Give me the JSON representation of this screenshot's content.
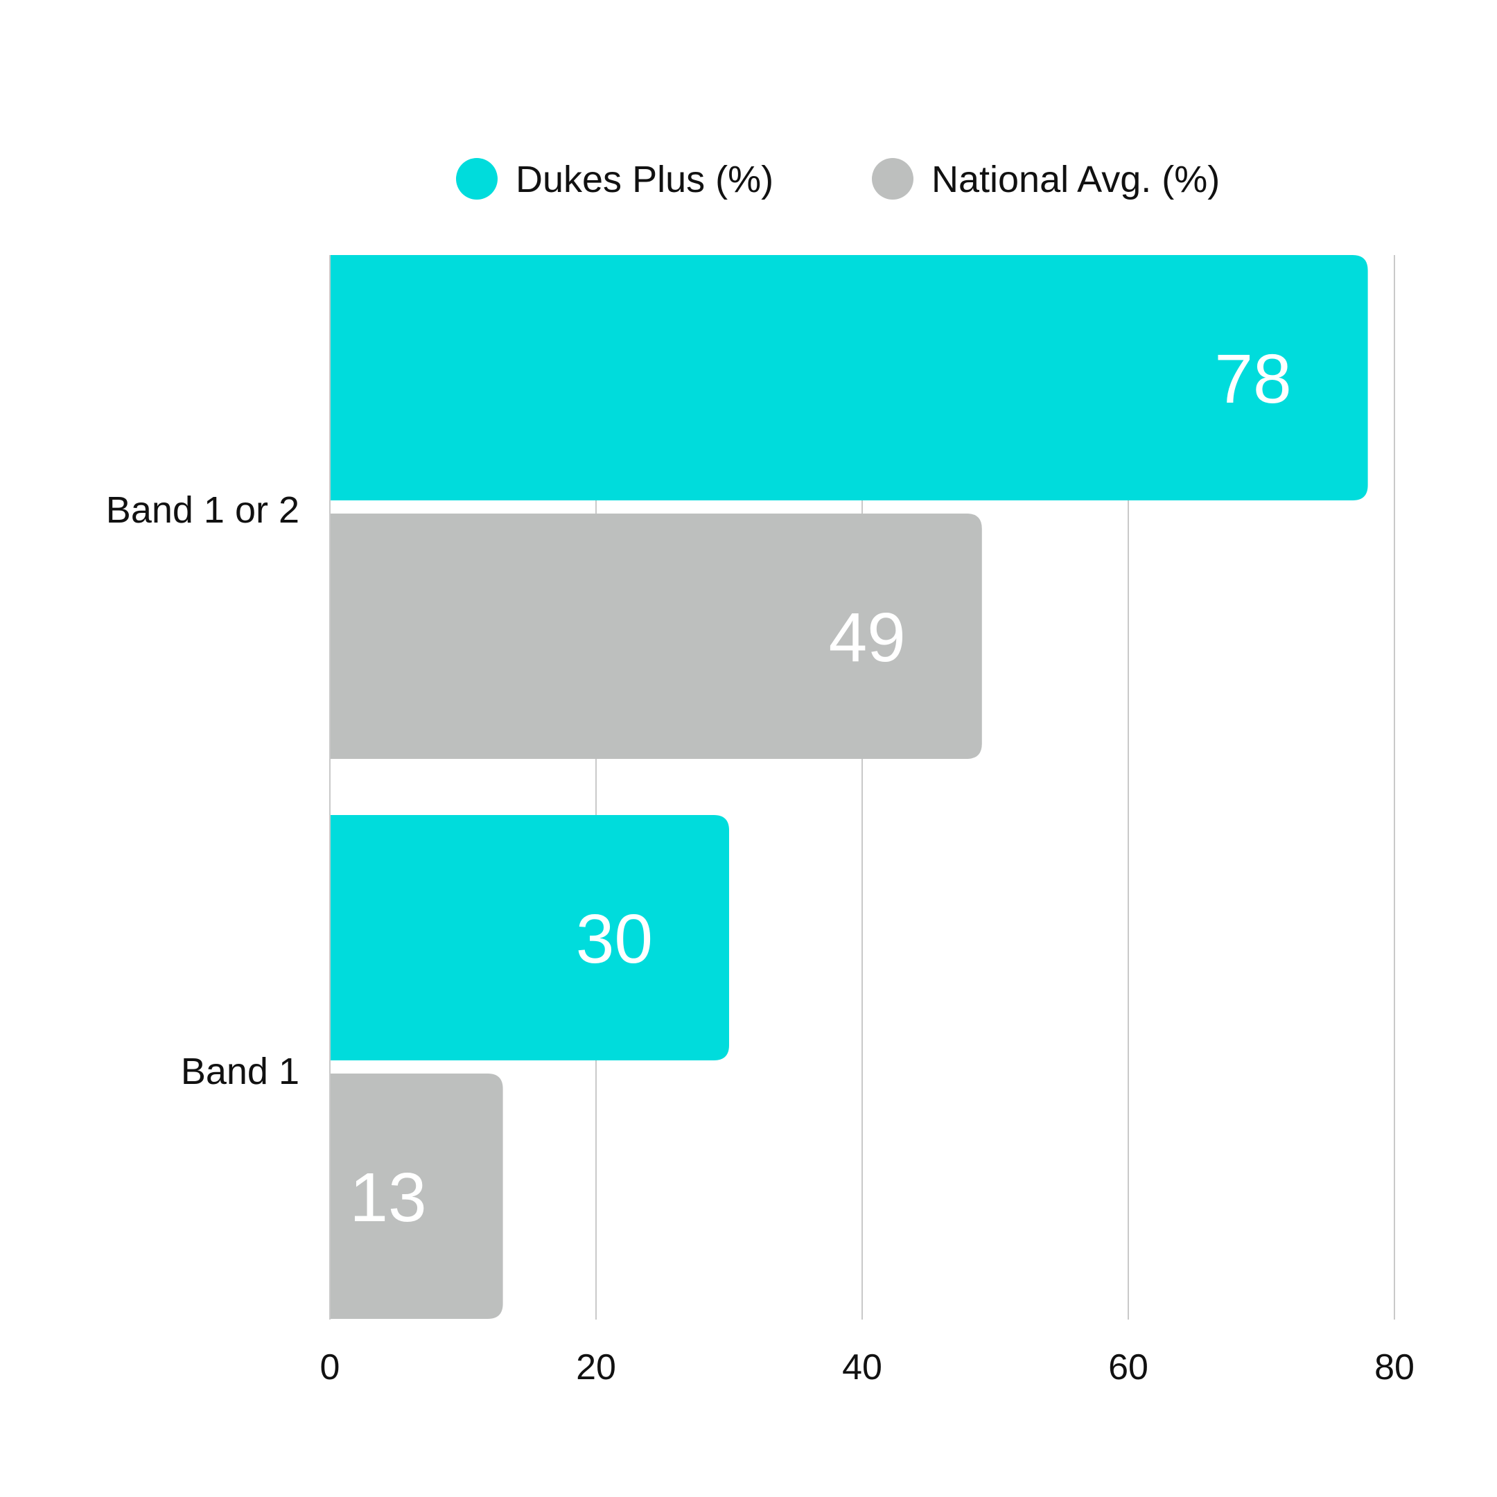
{
  "chart_data": {
    "type": "bar",
    "orientation": "horizontal",
    "categories": [
      "Band 1 or 2",
      "Band 1"
    ],
    "series": [
      {
        "name": "Dukes Plus (%)",
        "values": [
          78,
          30
        ],
        "color": "#00dcdc"
      },
      {
        "name": "National Avg. (%)",
        "values": [
          49,
          13
        ],
        "color": "#bdbfbe"
      }
    ],
    "xlim": [
      0,
      80
    ],
    "x_ticks": [
      "0",
      "20",
      "40",
      "60",
      "80"
    ],
    "grid": true,
    "legend": "top-center"
  }
}
